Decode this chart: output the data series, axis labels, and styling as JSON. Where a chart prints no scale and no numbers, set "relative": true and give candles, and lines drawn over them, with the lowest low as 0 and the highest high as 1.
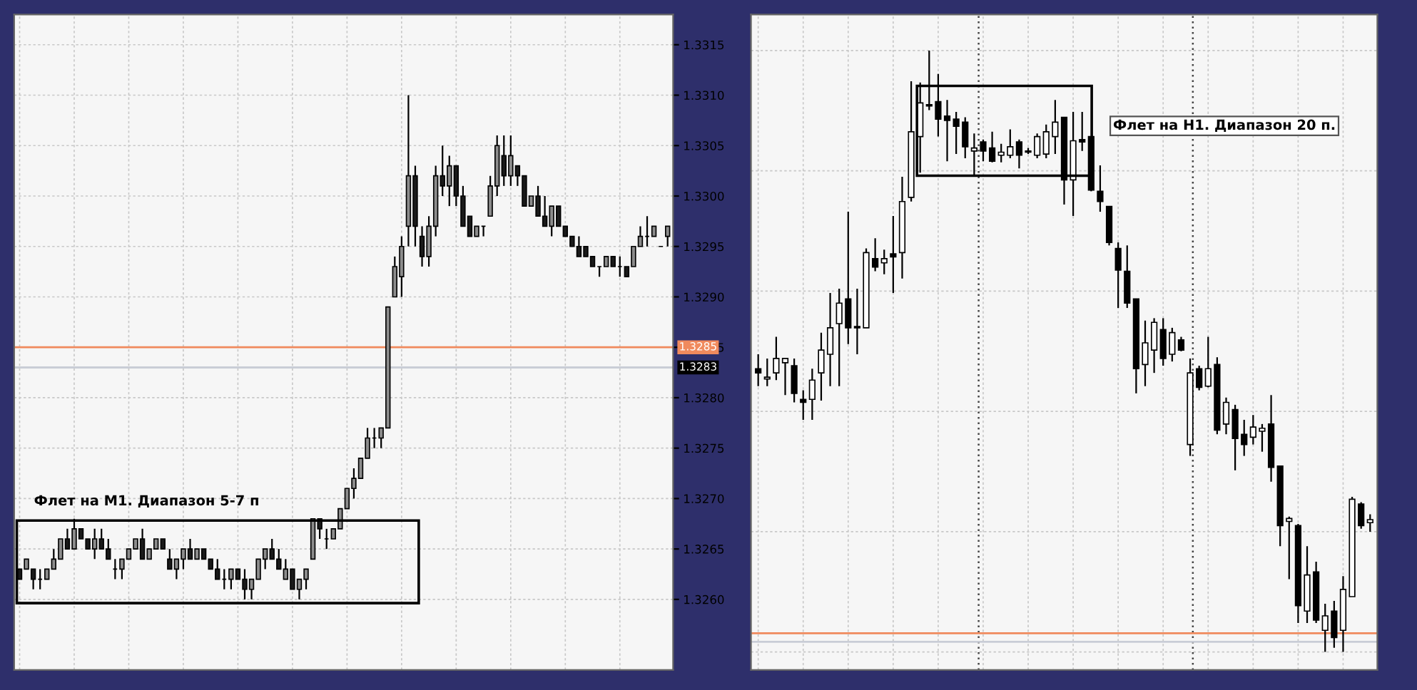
{
  "chart_data": [
    {
      "type": "candlestick",
      "categories": [
        null,
        null,
        null,
        null,
        null,
        null,
        null,
        null,
        null,
        null,
        null,
        null,
        null,
        null,
        null,
        null,
        null,
        null,
        null,
        null,
        null,
        null,
        null,
        null,
        null,
        null,
        null,
        null,
        null,
        null,
        null,
        null,
        null,
        null,
        null,
        null,
        null,
        null,
        null,
        null,
        null,
        null,
        null,
        null,
        null,
        null,
        null,
        null,
        null,
        null,
        null,
        null,
        null,
        null,
        null,
        null,
        null,
        null,
        null,
        null,
        null,
        null,
        null,
        null,
        null,
        null,
        null,
        null,
        null,
        null,
        null,
        null,
        null,
        null,
        null,
        null,
        null,
        null,
        null,
        null,
        null,
        null,
        null,
        null,
        null,
        null,
        null,
        null,
        null,
        null,
        null,
        null,
        null,
        null,
        null,
        null
      ],
      "ohlc": [
        [
          1.3263,
          1.3263,
          1.3262,
          1.3262
        ],
        [
          1.3263,
          1.3264,
          1.3263,
          1.3264
        ],
        [
          1.3263,
          1.3263,
          1.3261,
          1.3262
        ],
        [
          1.3262,
          1.3263,
          1.3261,
          1.3262
        ],
        [
          1.3262,
          1.3263,
          1.3262,
          1.3263
        ],
        [
          1.3263,
          1.3265,
          1.3263,
          1.3264
        ],
        [
          1.3264,
          1.3266,
          1.3264,
          1.3266
        ],
        [
          1.3266,
          1.3267,
          1.3265,
          1.3265
        ],
        [
          1.3265,
          1.3268,
          1.3265,
          1.3267
        ],
        [
          1.3267,
          1.3267,
          1.3266,
          1.3266
        ],
        [
          1.3266,
          1.3266,
          1.3265,
          1.3265
        ],
        [
          1.3265,
          1.3267,
          1.3264,
          1.3266
        ],
        [
          1.3266,
          1.3267,
          1.3265,
          1.3265
        ],
        [
          1.3265,
          1.3266,
          1.3264,
          1.3264
        ],
        [
          1.3263,
          1.3264,
          1.3262,
          1.3263
        ],
        [
          1.3263,
          1.3264,
          1.3262,
          1.3264
        ],
        [
          1.3264,
          1.3265,
          1.3264,
          1.3265
        ],
        [
          1.3265,
          1.3266,
          1.3265,
          1.3266
        ],
        [
          1.3266,
          1.3267,
          1.3264,
          1.3264
        ],
        [
          1.3264,
          1.3265,
          1.3264,
          1.3265
        ],
        [
          1.3265,
          1.3266,
          1.3265,
          1.3266
        ],
        [
          1.3266,
          1.3266,
          1.3265,
          1.3265
        ],
        [
          1.3264,
          1.3265,
          1.3263,
          1.3263
        ],
        [
          1.3263,
          1.3264,
          1.3262,
          1.3264
        ],
        [
          1.3264,
          1.3265,
          1.3263,
          1.3265
        ],
        [
          1.3265,
          1.3266,
          1.3264,
          1.3264
        ],
        [
          1.3264,
          1.3265,
          1.3264,
          1.3265
        ],
        [
          1.3265,
          1.3265,
          1.3264,
          1.3264
        ],
        [
          1.3264,
          1.3264,
          1.3263,
          1.3263
        ],
        [
          1.3263,
          1.3264,
          1.3262,
          1.3262
        ],
        [
          1.3262,
          1.3263,
          1.3261,
          1.3262
        ],
        [
          1.3262,
          1.3263,
          1.3261,
          1.3263
        ],
        [
          1.3263,
          1.3263,
          1.3262,
          1.3262
        ],
        [
          1.3262,
          1.3263,
          1.326,
          1.3261
        ],
        [
          1.3261,
          1.3262,
          1.326,
          1.3262
        ],
        [
          1.3262,
          1.3264,
          1.3262,
          1.3264
        ],
        [
          1.3264,
          1.3265,
          1.3263,
          1.3265
        ],
        [
          1.3265,
          1.3266,
          1.3264,
          1.3264
        ],
        [
          1.3264,
          1.3265,
          1.3263,
          1.3263
        ],
        [
          1.3262,
          1.3264,
          1.3262,
          1.3263
        ],
        [
          1.3263,
          1.3263,
          1.3261,
          1.3261
        ],
        [
          1.3261,
          1.3262,
          1.326,
          1.3262
        ],
        [
          1.3262,
          1.3263,
          1.3261,
          1.3263
        ],
        [
          1.3264,
          1.3268,
          1.3264,
          1.3268
        ],
        [
          1.3268,
          1.3268,
          1.3266,
          1.3267
        ],
        [
          1.3266,
          1.3267,
          1.3265,
          1.3266
        ],
        [
          1.3266,
          1.3267,
          1.3266,
          1.3267
        ],
        [
          1.3267,
          1.3269,
          1.3267,
          1.3269
        ],
        [
          1.3269,
          1.3271,
          1.3269,
          1.3271
        ],
        [
          1.3271,
          1.3273,
          1.327,
          1.3272
        ],
        [
          1.3272,
          1.3274,
          1.3272,
          1.3274
        ],
        [
          1.3274,
          1.3277,
          1.3274,
          1.3276
        ],
        [
          1.3276,
          1.3277,
          1.3275,
          1.3276
        ],
        [
          1.3276,
          1.3277,
          1.3275,
          1.3277
        ],
        [
          1.3277,
          1.3289,
          1.3277,
          1.3289
        ],
        [
          1.329,
          1.3294,
          1.329,
          1.3293
        ],
        [
          1.3292,
          1.3296,
          1.329,
          1.3295
        ],
        [
          1.3297,
          1.331,
          1.3295,
          1.3302
        ],
        [
          1.3302,
          1.3303,
          1.3295,
          1.3297
        ],
        [
          1.3296,
          1.3297,
          1.3293,
          1.3294
        ],
        [
          1.3294,
          1.3298,
          1.3293,
          1.3297
        ],
        [
          1.3297,
          1.3303,
          1.3296,
          1.3302
        ],
        [
          1.3302,
          1.3305,
          1.33,
          1.3301
        ],
        [
          1.3301,
          1.3304,
          1.3299,
          1.3303
        ],
        [
          1.3303,
          1.3303,
          1.3299,
          1.33
        ],
        [
          1.33,
          1.3301,
          1.3297,
          1.3297
        ],
        [
          1.3298,
          1.3298,
          1.3296,
          1.3296
        ],
        [
          1.3296,
          1.3297,
          1.3296,
          1.3297
        ],
        [
          1.3297,
          1.3297,
          1.3296,
          1.3297
        ],
        [
          1.3298,
          1.3302,
          1.3298,
          1.3301
        ],
        [
          1.3301,
          1.3306,
          1.33,
          1.3305
        ],
        [
          1.3304,
          1.3306,
          1.3301,
          1.3302
        ],
        [
          1.3302,
          1.3306,
          1.3301,
          1.3304
        ],
        [
          1.3303,
          1.3303,
          1.3301,
          1.3302
        ],
        [
          1.3302,
          1.3302,
          1.3299,
          1.3299
        ],
        [
          1.3299,
          1.33,
          1.3299,
          1.33
        ],
        [
          1.33,
          1.3301,
          1.3298,
          1.3298
        ],
        [
          1.3298,
          1.33,
          1.3297,
          1.3297
        ],
        [
          1.3297,
          1.3299,
          1.3296,
          1.3299
        ],
        [
          1.3299,
          1.3299,
          1.3297,
          1.3297
        ],
        [
          1.3297,
          1.3297,
          1.3296,
          1.3296
        ],
        [
          1.3296,
          1.3296,
          1.3295,
          1.3295
        ],
        [
          1.3295,
          1.3296,
          1.3294,
          1.3294
        ],
        [
          1.3295,
          1.3295,
          1.3294,
          1.3294
        ],
        [
          1.3294,
          1.3294,
          1.3293,
          1.3293
        ],
        [
          1.3293,
          1.3293,
          1.3292,
          1.3293
        ],
        [
          1.3293,
          1.3294,
          1.3293,
          1.3294
        ],
        [
          1.3294,
          1.3294,
          1.3293,
          1.3293
        ],
        [
          1.3293,
          1.3294,
          1.3292,
          1.3293
        ],
        [
          1.3293,
          1.3293,
          1.3292,
          1.3292
        ],
        [
          1.3293,
          1.3295,
          1.3293,
          1.3295
        ],
        [
          1.3295,
          1.3297,
          1.3295,
          1.3296
        ],
        [
          1.3296,
          1.3298,
          1.3295,
          1.3296
        ],
        [
          1.3296,
          1.3297,
          1.3296,
          1.3297
        ],
        [
          1.3295,
          1.3295,
          1.3295,
          1.3295
        ],
        [
          1.3296,
          1.3297,
          1.3295,
          1.3297
        ]
      ],
      "ylim": [
        1.3253,
        1.3318
      ],
      "yticks": [
        {
          "value": 1.326,
          "label": "1.3260"
        },
        1.3265,
        {
          "value": 1.327,
          "label": "1.3270"
        },
        1.3275,
        {
          "value": 1.328,
          "label": "1.3280"
        },
        1.3285,
        {
          "value": 1.329,
          "label": "1.3290"
        },
        1.3295,
        {
          "value": 1.33,
          "label": "1.3300"
        },
        1.3305,
        {
          "value": 1.331,
          "label": "1.3310"
        },
        1.3315
      ],
      "ref_lines": [
        {
          "axis": "y",
          "value": 1.3285,
          "label": "1.3285",
          "color": "#f08a5d"
        },
        {
          "axis": "y",
          "value": 1.3283,
          "label": "1.3283",
          "color": "#c9cdd6"
        }
      ],
      "grid": true,
      "annotations": [
        "Флет на М1. Диапазон 5-7 п"
      ]
    },
    {
      "type": "candlestick",
      "relative": true,
      "categories": [
        null,
        null,
        null,
        null,
        null,
        null,
        null,
        null,
        null,
        null,
        null,
        null,
        null,
        null,
        null,
        null,
        null,
        null,
        null,
        null,
        null,
        null,
        null,
        null,
        null,
        null,
        null,
        null,
        null,
        null,
        null,
        null,
        null,
        null,
        null,
        null,
        null,
        null,
        null,
        null,
        null,
        null,
        null,
        null,
        null,
        null,
        null,
        null,
        null,
        null,
        null,
        null,
        null,
        null,
        null,
        null,
        null,
        null,
        null,
        null,
        null,
        null,
        null,
        null,
        null,
        null,
        null,
        null,
        null
      ],
      "ohlc": [
        [
          0.471,
          0.495,
          0.442,
          0.464
        ],
        [
          0.454,
          0.488,
          0.442,
          0.457
        ],
        [
          0.464,
          0.524,
          0.452,
          0.488
        ],
        [
          0.481,
          0.488,
          0.427,
          0.488
        ],
        [
          0.476,
          0.488,
          0.415,
          0.43
        ],
        [
          0.42,
          0.435,
          0.386,
          0.415
        ],
        [
          0.42,
          0.471,
          0.386,
          0.452
        ],
        [
          0.464,
          0.531,
          0.418,
          0.502
        ],
        [
          0.495,
          0.597,
          0.442,
          0.539
        ],
        [
          0.546,
          0.604,
          0.442,
          0.58
        ],
        [
          0.587,
          0.732,
          0.512,
          0.539
        ],
        [
          0.539,
          0.604,
          0.495,
          0.541
        ],
        [
          0.539,
          0.671,
          0.539,
          0.664
        ],
        [
          0.654,
          0.688,
          0.633,
          0.64
        ],
        [
          0.647,
          0.669,
          0.628,
          0.654
        ],
        [
          0.662,
          0.725,
          0.597,
          0.657
        ],
        [
          0.664,
          0.79,
          0.621,
          0.749
        ],
        [
          0.756,
          0.949,
          0.749,
          0.865
        ],
        [
          0.857,
          0.947,
          0.797,
          0.913
        ],
        [
          0.908,
          1.0,
          0.901,
          0.91
        ],
        [
          0.915,
          0.961,
          0.857,
          0.886
        ],
        [
          0.891,
          0.918,
          0.816,
          0.884
        ],
        [
          0.886,
          0.898,
          0.828,
          0.874
        ],
        [
          0.881,
          0.889,
          0.821,
          0.84
        ],
        [
          0.833,
          0.862,
          0.792,
          0.838
        ],
        [
          0.848,
          0.852,
          0.816,
          0.833
        ],
        [
          0.838,
          0.865,
          0.814,
          0.816
        ],
        [
          0.826,
          0.845,
          0.814,
          0.831
        ],
        [
          0.826,
          0.869,
          0.821,
          0.84
        ],
        [
          0.848,
          0.852,
          0.804,
          0.826
        ],
        [
          0.831,
          0.838,
          0.828,
          0.833
        ],
        [
          0.826,
          0.862,
          0.821,
          0.857
        ],
        [
          0.828,
          0.877,
          0.821,
          0.865
        ],
        [
          0.857,
          0.918,
          0.828,
          0.881
        ],
        [
          0.889,
          0.889,
          0.744,
          0.785
        ],
        [
          0.785,
          0.898,
          0.725,
          0.85
        ],
        [
          0.852,
          0.898,
          0.833,
          0.848
        ],
        [
          0.857,
          0.857,
          0.766,
          0.768
        ],
        [
          0.766,
          0.809,
          0.732,
          0.749
        ],
        [
          0.741,
          0.741,
          0.676,
          0.681
        ],
        [
          0.671,
          0.681,
          0.572,
          0.635
        ],
        [
          0.633,
          0.676,
          0.572,
          0.58
        ],
        [
          0.587,
          0.587,
          0.43,
          0.471
        ],
        [
          0.478,
          0.551,
          0.442,
          0.514
        ],
        [
          0.502,
          0.555,
          0.464,
          0.548
        ],
        [
          0.536,
          0.555,
          0.476,
          0.488
        ],
        [
          0.495,
          0.539,
          0.483,
          0.531
        ],
        [
          0.519,
          0.524,
          0.5,
          0.502
        ],
        [
          0.345,
          0.488,
          0.326,
          0.464
        ],
        [
          0.471,
          0.476,
          0.435,
          0.44
        ],
        [
          0.442,
          0.524,
          0.44,
          0.471
        ],
        [
          0.478,
          0.49,
          0.362,
          0.369
        ],
        [
          0.379,
          0.423,
          0.362,
          0.415
        ],
        [
          0.403,
          0.411,
          0.302,
          0.355
        ],
        [
          0.362,
          0.386,
          0.326,
          0.345
        ],
        [
          0.357,
          0.394,
          0.345,
          0.374
        ],
        [
          0.367,
          0.379,
          0.333,
          0.372
        ],
        [
          0.379,
          0.427,
          0.283,
          0.307
        ],
        [
          0.309,
          0.309,
          0.176,
          0.21
        ],
        [
          0.217,
          0.225,
          0.121,
          0.222
        ],
        [
          0.21,
          0.213,
          0.048,
          0.077
        ],
        [
          0.068,
          0.176,
          0.048,
          0.128
        ],
        [
          0.133,
          0.15,
          0.048,
          0.053
        ],
        [
          0.036,
          0.08,
          0.0,
          0.06
        ],
        [
          0.068,
          0.085,
          0.007,
          0.024
        ],
        [
          0.036,
          0.126,
          0.0,
          0.104
        ],
        [
          0.092,
          0.258,
          0.092,
          0.254
        ],
        [
          0.246,
          0.249,
          0.205,
          0.21
        ],
        [
          0.215,
          0.229,
          0.2,
          0.22
        ]
      ],
      "ref_lines": [
        {
          "axis": "y",
          "value": 0.031,
          "color": "#f08a5d"
        },
        {
          "axis": "y",
          "value": 0.017,
          "color": "#c9cdd6"
        }
      ],
      "grid": true,
      "annotations": [
        "Флет на Н1. Диапазон 20 п."
      ]
    }
  ]
}
